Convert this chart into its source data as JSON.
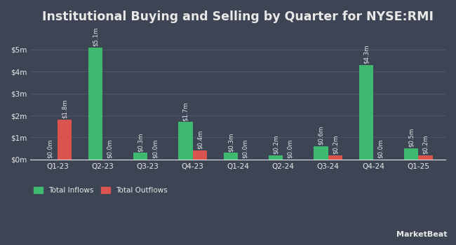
{
  "title": "Institutional Buying and Selling by Quarter for NYSE:RMI",
  "quarters": [
    "Q1-23",
    "Q2-23",
    "Q3-23",
    "Q4-23",
    "Q1-24",
    "Q2-24",
    "Q3-24",
    "Q4-24",
    "Q1-25"
  ],
  "inflows": [
    0.0,
    5.1,
    0.3,
    1.7,
    0.3,
    0.2,
    0.6,
    4.3,
    0.5
  ],
  "outflows": [
    1.8,
    0.0,
    0.0,
    0.4,
    0.0,
    0.0,
    0.2,
    0.0,
    0.2
  ],
  "inflow_labels": [
    "$0.0m",
    "$5.1m",
    "$0.3m",
    "$1.7m",
    "$0.3m",
    "$0.2m",
    "$0.6m",
    "$4.3m",
    "$0.5m"
  ],
  "outflow_labels": [
    "$1.8m",
    "$0.0m",
    "$0.0m",
    "$0.4m",
    "$0.0m",
    "$0.0m",
    "$0.2m",
    "$0.0m",
    "$0.2m"
  ],
  "inflow_color": "#3dba6f",
  "outflow_color": "#d9534f",
  "background_color": "#3d4555",
  "plot_bg_color": "#3d4555",
  "text_color": "#e8e8e8",
  "grid_color": "#4d5568",
  "bar_width": 0.32,
  "ylim": [
    0,
    5.8
  ],
  "yticks": [
    0,
    1,
    2,
    3,
    4,
    5
  ],
  "ytick_labels": [
    "$0m",
    "$1m",
    "$2m",
    "$3m",
    "$4m",
    "$5m"
  ],
  "legend_inflow": "Total Inflows",
  "legend_outflow": "Total Outflows",
  "title_fontsize": 12.5,
  "label_fontsize": 6.2,
  "tick_fontsize": 7.5,
  "legend_fontsize": 7.5
}
